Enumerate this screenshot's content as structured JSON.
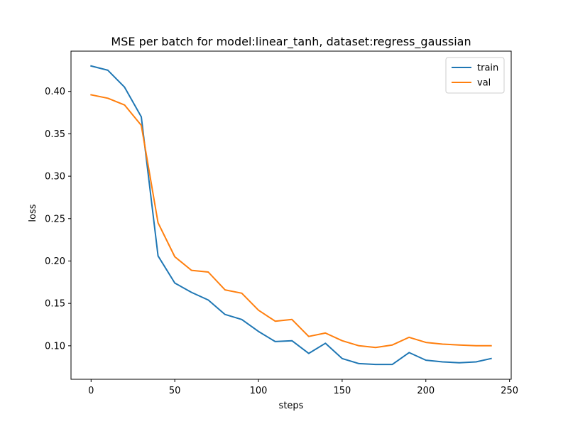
{
  "chart_data": {
    "type": "line",
    "title": "MSE per batch for model:linear_tanh, dataset:regress_gaussian",
    "xlabel": "steps",
    "ylabel": "loss",
    "xlim": [
      -12,
      251
    ],
    "ylim": [
      0.0605,
      0.4475
    ],
    "xticks": [
      0,
      50,
      100,
      150,
      200,
      250
    ],
    "yticks": [
      0.1,
      0.15,
      0.2,
      0.25,
      0.3,
      0.35,
      0.4
    ],
    "legend_position": "top-right",
    "grid": false,
    "x": [
      0,
      10,
      20,
      30,
      40,
      50,
      60,
      70,
      80,
      90,
      100,
      110,
      120,
      130,
      140,
      150,
      160,
      170,
      180,
      190,
      200,
      210,
      220,
      230,
      239
    ],
    "series": [
      {
        "name": "train",
        "color": "#1f77b4",
        "values": [
          0.43,
          0.425,
          0.405,
          0.37,
          0.206,
          0.174,
          0.163,
          0.154,
          0.137,
          0.131,
          0.117,
          0.105,
          0.106,
          0.091,
          0.103,
          0.085,
          0.079,
          0.078,
          0.078,
          0.092,
          0.083,
          0.081,
          0.08,
          0.081,
          0.085
        ]
      },
      {
        "name": "val",
        "color": "#ff7f0e",
        "values": [
          0.396,
          0.392,
          0.384,
          0.36,
          0.245,
          0.205,
          0.189,
          0.187,
          0.166,
          0.162,
          0.142,
          0.129,
          0.131,
          0.111,
          0.115,
          0.106,
          0.1,
          0.098,
          0.101,
          0.11,
          0.104,
          0.102,
          0.101,
          0.1,
          0.1
        ]
      }
    ]
  }
}
